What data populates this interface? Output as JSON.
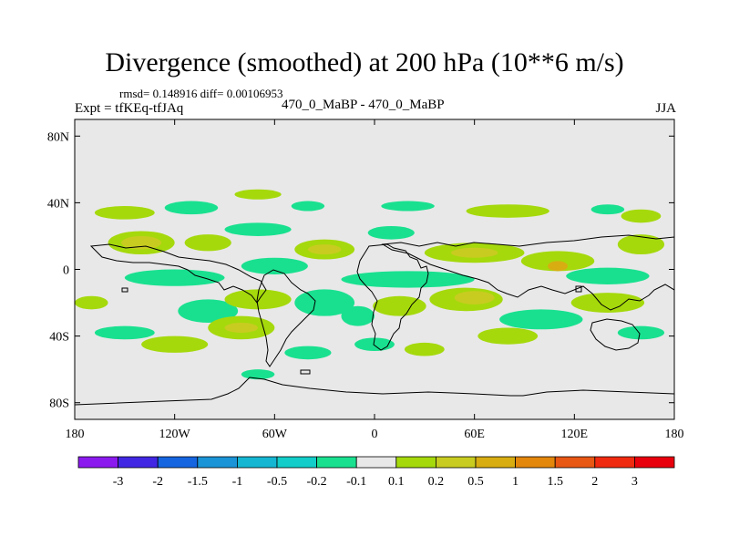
{
  "header": {
    "title": "Divergence (smoothed) at 200 hPa (10**6 m/s)",
    "stats": "rmsd= 0.148916 diff= 0.00106953",
    "expt": "Expt = tfKEq-tfJAq",
    "case": "470_0_MaBP - 470_0_MaBP",
    "season": "JJA"
  },
  "map": {
    "lon_range": [
      -180,
      180
    ],
    "lat_range": [
      -90,
      90
    ],
    "x_ticks": [
      {
        "lon": -180,
        "label": "180"
      },
      {
        "lon": -120,
        "label": "120W"
      },
      {
        "lon": -60,
        "label": "60W"
      },
      {
        "lon": 0,
        "label": "0"
      },
      {
        "lon": 60,
        "label": "60E"
      },
      {
        "lon": 120,
        "label": "120E"
      },
      {
        "lon": 180,
        "label": "180"
      }
    ],
    "y_ticks": [
      {
        "lat": 80,
        "label": "80N"
      },
      {
        "lat": 40,
        "label": "40N"
      },
      {
        "lat": 0,
        "label": "0"
      },
      {
        "lat": -40,
        "label": "40S"
      },
      {
        "lat": -80,
        "label": "80S"
      }
    ],
    "background_color": "#e8e8e8"
  },
  "colorbar": {
    "labels": [
      "-3",
      "-2",
      "-1.5",
      "-1",
      "-0.5",
      "-0.2",
      "-0.1",
      "0.1",
      "0.2",
      "0.5",
      "1",
      "1.5",
      "2",
      "3"
    ],
    "colors": [
      "#8b1aef",
      "#4127e4",
      "#1565e0",
      "#1a94d6",
      "#14b6d2",
      "#12cdc9",
      "#19e08f",
      "#e8e8e8",
      "#a5d90c",
      "#c8cc20",
      "#d8ad12",
      "#e3860c",
      "#e85714",
      "#f02a10",
      "#e8000c"
    ]
  },
  "chart_data": {
    "type": "heatmap",
    "variable": "Divergence (smoothed) at 200 hPa",
    "units": "10**6 m/s",
    "season": "JJA",
    "rmsd": 0.148916,
    "diff": 0.00106953,
    "levels": [
      -3,
      -2,
      -1.5,
      -1,
      -0.5,
      -0.2,
      -0.1,
      0.1,
      0.2,
      0.5,
      1,
      1.5,
      2,
      3
    ],
    "anomalies": [
      {
        "lon": -150,
        "lat": 34,
        "class": 1,
        "rx": 18,
        "ry": 4
      },
      {
        "lon": -110,
        "lat": 37,
        "class": -1,
        "rx": 16,
        "ry": 4
      },
      {
        "lon": -70,
        "lat": 45,
        "class": 1,
        "rx": 14,
        "ry": 3
      },
      {
        "lon": -40,
        "lat": 38,
        "class": -1,
        "rx": 10,
        "ry": 3
      },
      {
        "lon": 20,
        "lat": 38,
        "class": -1,
        "rx": 16,
        "ry": 3
      },
      {
        "lon": 80,
        "lat": 35,
        "class": 1,
        "rx": 25,
        "ry": 4
      },
      {
        "lon": 140,
        "lat": 36,
        "class": -1,
        "rx": 10,
        "ry": 3
      },
      {
        "lon": 160,
        "lat": 32,
        "class": 1,
        "rx": 12,
        "ry": 4
      },
      {
        "lon": -140,
        "lat": 16,
        "class": 1,
        "rx": 20,
        "ry": 7
      },
      {
        "lon": -140,
        "lat": 16,
        "class": 2,
        "rx": 12,
        "ry": 4
      },
      {
        "lon": -100,
        "lat": 16,
        "class": 1,
        "rx": 14,
        "ry": 5
      },
      {
        "lon": -70,
        "lat": 24,
        "class": -1,
        "rx": 20,
        "ry": 4
      },
      {
        "lon": -30,
        "lat": 12,
        "class": 1,
        "rx": 18,
        "ry": 6
      },
      {
        "lon": -30,
        "lat": 12,
        "class": 2,
        "rx": 10,
        "ry": 3
      },
      {
        "lon": 10,
        "lat": 22,
        "class": -1,
        "rx": 14,
        "ry": 4
      },
      {
        "lon": 60,
        "lat": 10,
        "class": 1,
        "rx": 30,
        "ry": 6
      },
      {
        "lon": 60,
        "lat": 10,
        "class": 2,
        "rx": 14,
        "ry": 3
      },
      {
        "lon": 110,
        "lat": 5,
        "class": 1,
        "rx": 22,
        "ry": 6
      },
      {
        "lon": 110,
        "lat": 2,
        "class": 3,
        "rx": 6,
        "ry": 3
      },
      {
        "lon": 160,
        "lat": 15,
        "class": 1,
        "rx": 14,
        "ry": 6
      },
      {
        "lon": -120,
        "lat": -5,
        "class": -1,
        "rx": 30,
        "ry": 5
      },
      {
        "lon": -60,
        "lat": 2,
        "class": -1,
        "rx": 20,
        "ry": 5
      },
      {
        "lon": 20,
        "lat": -6,
        "class": -1,
        "rx": 40,
        "ry": 5
      },
      {
        "lon": 140,
        "lat": -4,
        "class": -1,
        "rx": 25,
        "ry": 5
      },
      {
        "lon": -100,
        "lat": -25,
        "class": -1,
        "rx": 18,
        "ry": 7
      },
      {
        "lon": -70,
        "lat": -18,
        "class": 1,
        "rx": 20,
        "ry": 6
      },
      {
        "lon": -30,
        "lat": -20,
        "class": -1,
        "rx": 18,
        "ry": 8
      },
      {
        "lon": -10,
        "lat": -28,
        "class": -1,
        "rx": 10,
        "ry": 6
      },
      {
        "lon": 15,
        "lat": -22,
        "class": 1,
        "rx": 16,
        "ry": 6
      },
      {
        "lon": 55,
        "lat": -18,
        "class": 1,
        "rx": 22,
        "ry": 7
      },
      {
        "lon": 60,
        "lat": -17,
        "class": 2,
        "rx": 12,
        "ry": 4
      },
      {
        "lon": 100,
        "lat": -30,
        "class": -1,
        "rx": 25,
        "ry": 6
      },
      {
        "lon": 140,
        "lat": -20,
        "class": 1,
        "rx": 22,
        "ry": 6
      },
      {
        "lon": 160,
        "lat": -38,
        "class": -1,
        "rx": 14,
        "ry": 4
      },
      {
        "lon": -150,
        "lat": -38,
        "class": -1,
        "rx": 18,
        "ry": 4
      },
      {
        "lon": -120,
        "lat": -45,
        "class": 1,
        "rx": 20,
        "ry": 5
      },
      {
        "lon": -80,
        "lat": -35,
        "class": 1,
        "rx": 20,
        "ry": 7
      },
      {
        "lon": -80,
        "lat": -35,
        "class": 2,
        "rx": 10,
        "ry": 3
      },
      {
        "lon": -40,
        "lat": -50,
        "class": -1,
        "rx": 14,
        "ry": 4
      },
      {
        "lon": 0,
        "lat": -45,
        "class": -1,
        "rx": 12,
        "ry": 4
      },
      {
        "lon": 30,
        "lat": -48,
        "class": 1,
        "rx": 12,
        "ry": 4
      },
      {
        "lon": 80,
        "lat": -40,
        "class": 1,
        "rx": 18,
        "ry": 5
      },
      {
        "lon": -70,
        "lat": -63,
        "class": -1,
        "rx": 10,
        "ry": 3
      },
      {
        "lon": -170,
        "lat": -20,
        "class": 1,
        "rx": 10,
        "ry": 4
      }
    ]
  }
}
